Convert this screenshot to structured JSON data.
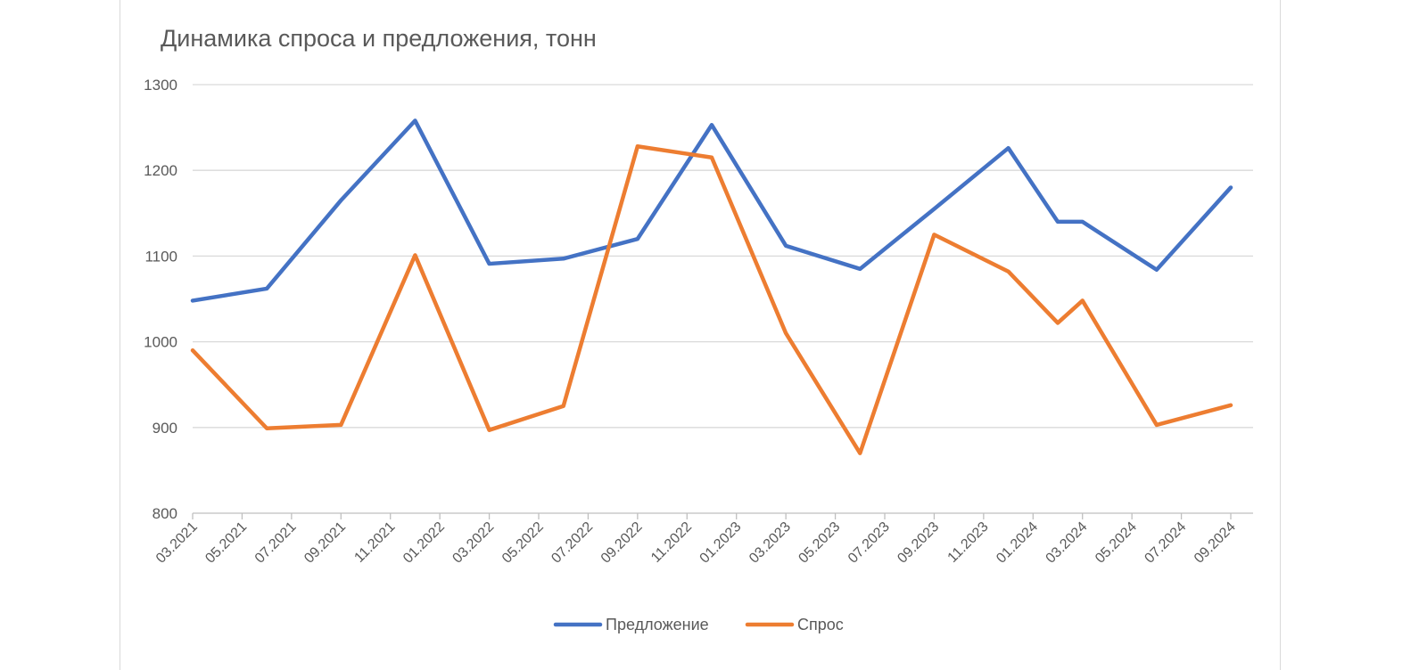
{
  "chart_data": {
    "type": "line",
    "title": "Динамика спроса и предложения, тонн",
    "xlabel": "",
    "ylabel": "",
    "ylim": [
      800,
      1300
    ],
    "yticks": [
      800,
      900,
      1000,
      1100,
      1200,
      1300
    ],
    "grid": true,
    "legend": "bottom",
    "x_tick_labels": [
      "03.2021",
      "05.2021",
      "07.2021",
      "09.2021",
      "11.2021",
      "01.2022",
      "03.2022",
      "05.2022",
      "07.2022",
      "09.2022",
      "11.2022",
      "01.2023",
      "03.2023",
      "05.2023",
      "07.2023",
      "09.2023",
      "11.2023",
      "01.2024",
      "03.2024",
      "05.2024",
      "07.2024",
      "09.2024"
    ],
    "x": [
      "03.2021",
      "06.2021",
      "09.2021",
      "12.2021",
      "03.2022",
      "06.2022",
      "09.2022",
      "12.2022",
      "03.2023",
      "06.2023",
      "09.2023",
      "12.2023",
      "02.2024",
      "03.2024",
      "06.2024",
      "09.2024"
    ],
    "series": [
      {
        "name": "Предложение",
        "color": "#4472c4",
        "values": [
          1048,
          1062,
          1165,
          1258,
          1091,
          1097,
          1120,
          1253,
          1112,
          1085,
          1155,
          1226,
          1140,
          1140,
          1084,
          1180
        ]
      },
      {
        "name": "Спрос",
        "color": "#ed7d31",
        "values": [
          990,
          899,
          903,
          1101,
          897,
          925,
          1228,
          1215,
          1010,
          870,
          1125,
          1082,
          1022,
          1048,
          903,
          926
        ]
      }
    ]
  }
}
